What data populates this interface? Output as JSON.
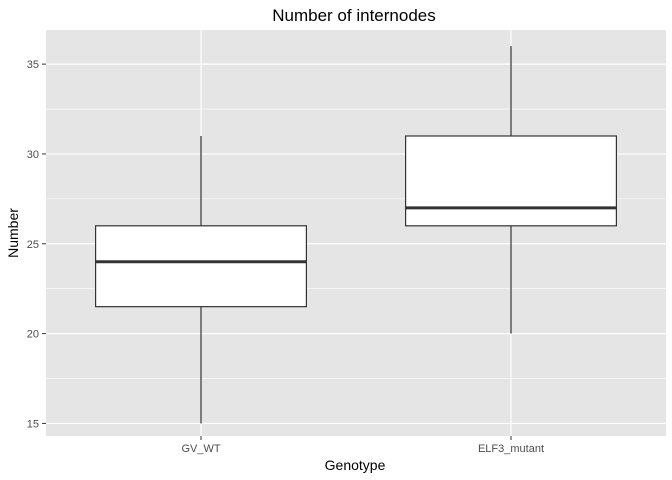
{
  "chart_data": {
    "type": "boxplot",
    "title": "Number of internodes",
    "xlabel": "Genotype",
    "ylabel": "Number",
    "categories": [
      "GV_WT",
      "ELF3_mutant"
    ],
    "boxes": [
      {
        "category": "GV_WT",
        "min": 15,
        "q1": 21.5,
        "median": 24,
        "q3": 26,
        "max": 31
      },
      {
        "category": "ELF3_mutant",
        "min": 20,
        "q1": 26,
        "median": 27,
        "q3": 31,
        "max": 36
      }
    ],
    "ylim": [
      14.3,
      36.9
    ],
    "yticks": [
      15,
      20,
      25,
      30,
      35
    ],
    "ytick_labels": [
      "15",
      "20",
      "25",
      "30",
      "35"
    ],
    "grid": true,
    "colors": {
      "panel": "#e5e5e5",
      "grid": "#ffffff",
      "box_fill": "#ffffff",
      "box_line": "#333333",
      "median": "#333333"
    }
  }
}
